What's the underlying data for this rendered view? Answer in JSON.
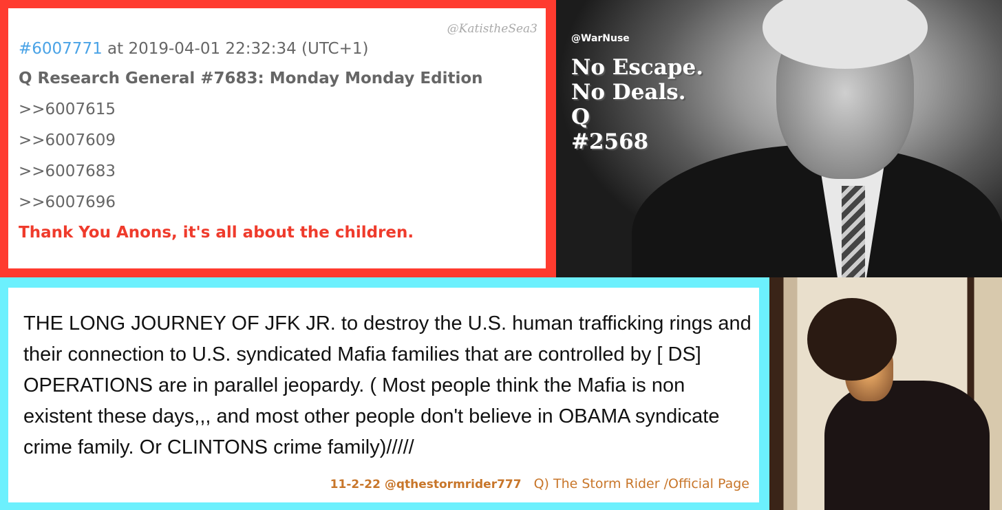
{
  "post": {
    "watermark": "@KatistheSea3",
    "post_id": "#6007771",
    "timestamp": "at 2019-04-01 22:32:34 (UTC+1)",
    "thread": "Q Research General #7683: Monday Monday Edition",
    "refs": [
      ">>6007615",
      ">>6007609",
      ">>6007683",
      ">>6007696"
    ],
    "message": "Thank You Anons, it's all about the children.",
    "accent": "#ff3b2f"
  },
  "photo1": {
    "credit": "@WarNuse",
    "caption": [
      "No Escape.",
      "No Deals.",
      "Q",
      "#2568"
    ]
  },
  "story": {
    "text": "THE LONG JOURNEY OF JFK JR. to destroy the U.S. human trafficking rings and their connection to U.S. syndicated Mafia families that are controlled by [ DS] OPERATIONS are in parallel jeopardy. ( Most people think the Mafia is non existent these days,,, and most other people don't believe in OBAMA syndicate crime family. Or CLINTONS crime family)/////",
    "date_handle": "11-2-22 @qthestormrider777",
    "page": "Q) The Storm Rider /Official Page",
    "accent": "#6cf0fd"
  }
}
